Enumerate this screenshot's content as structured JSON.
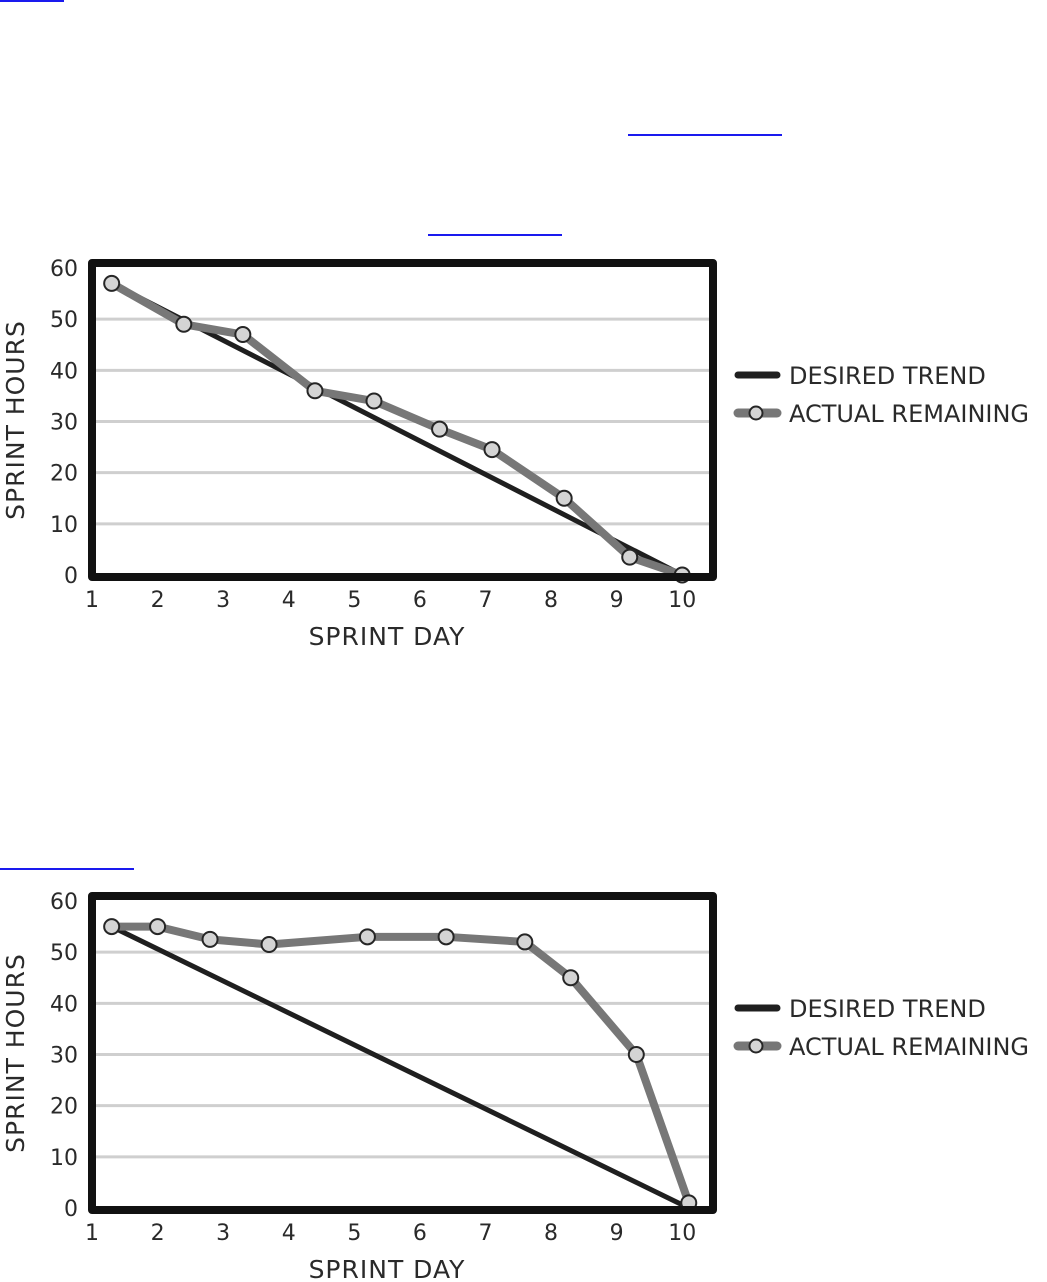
{
  "chart_data": [
    {
      "type": "line",
      "title": "",
      "xlabel": "SPRINT DAY",
      "ylabel": "SPRINT HOURS",
      "x_ticks": [
        "1",
        "2",
        "3",
        "4",
        "5",
        "6",
        "7",
        "8",
        "9",
        "10"
      ],
      "y_ticks": [
        "0",
        "10",
        "20",
        "30",
        "40",
        "50",
        "60"
      ],
      "xlim": [
        1,
        10.5
      ],
      "ylim": [
        0,
        60
      ],
      "grid": true,
      "legend_position": "right",
      "series": [
        {
          "name": "DESIRED TREND",
          "color": "#1f1f1f",
          "marker": false,
          "x": [
            1.3,
            10.0
          ],
          "y": [
            57,
            0
          ]
        },
        {
          "name": "ACTUAL REMAINING",
          "color": "#777777",
          "marker": true,
          "x": [
            1.3,
            2.4,
            3.3,
            4.4,
            5.3,
            6.3,
            7.1,
            8.2,
            9.2,
            10.0
          ],
          "y": [
            57,
            49,
            47,
            36,
            34,
            28.5,
            24.5,
            15,
            3.5,
            0
          ]
        }
      ]
    },
    {
      "type": "line",
      "title": "",
      "xlabel": "SPRINT DAY",
      "ylabel": "SPRINT HOURS",
      "x_ticks": [
        "1",
        "2",
        "3",
        "4",
        "5",
        "6",
        "7",
        "8",
        "9",
        "10"
      ],
      "y_ticks": [
        "0",
        "10",
        "20",
        "30",
        "40",
        "50",
        "60"
      ],
      "xlim": [
        1,
        10.5
      ],
      "ylim": [
        0,
        60
      ],
      "grid": true,
      "legend_position": "right",
      "series": [
        {
          "name": "DESIRED TREND",
          "color": "#1f1f1f",
          "marker": false,
          "x": [
            1.3,
            10.1
          ],
          "y": [
            55,
            0
          ]
        },
        {
          "name": "ACTUAL REMAINING",
          "color": "#777777",
          "marker": true,
          "x": [
            1.3,
            2.0,
            2.8,
            3.7,
            5.2,
            6.4,
            7.6,
            8.3,
            9.3,
            10.1
          ],
          "y": [
            55,
            55,
            52.5,
            51.5,
            53,
            53,
            52,
            45,
            30,
            1
          ]
        }
      ]
    }
  ]
}
